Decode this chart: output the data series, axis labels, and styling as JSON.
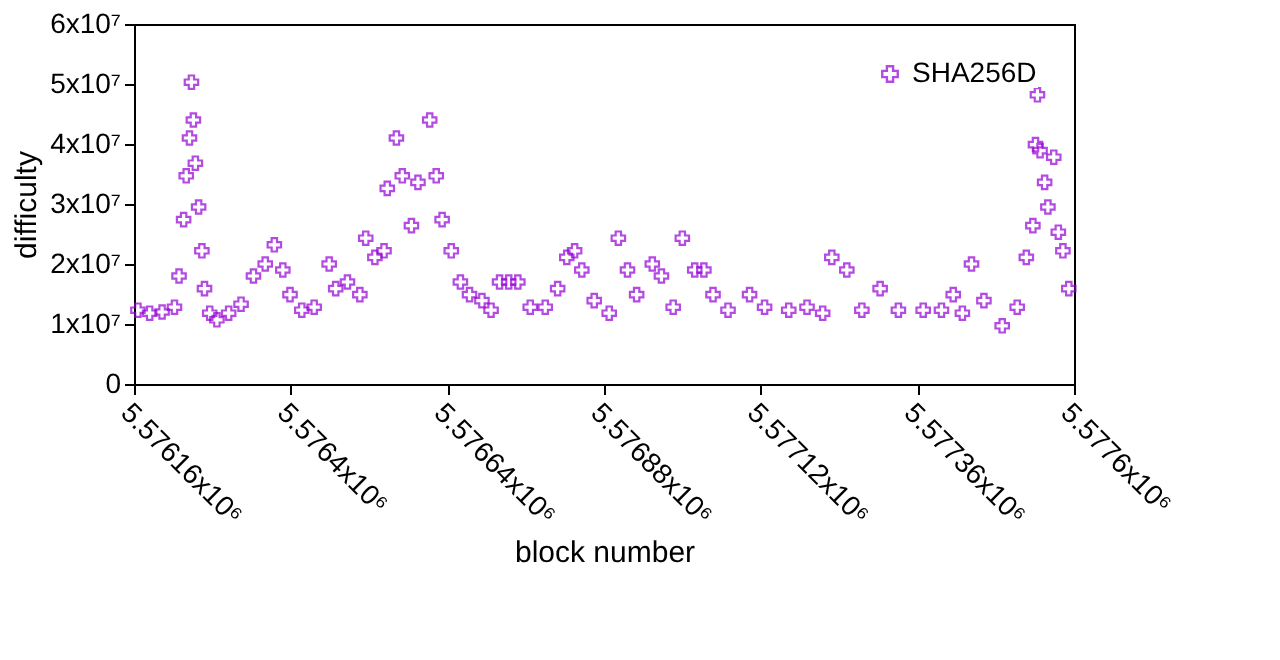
{
  "chart_data": {
    "type": "scatter",
    "xlabel": "block number",
    "ylabel": "difficulty",
    "xlim": [
      5576160,
      5577600
    ],
    "xticks": [
      {
        "value": 5576160,
        "label": "5.57616x10⁶"
      },
      {
        "value": 5576400,
        "label": "5.5764x10⁶"
      },
      {
        "value": 5576640,
        "label": "5.57664x10⁶"
      },
      {
        "value": 5576880,
        "label": "5.57688x10⁶"
      },
      {
        "value": 5577120,
        "label": "5.57712x10⁶"
      },
      {
        "value": 5577360,
        "label": "5.57736x10⁶"
      },
      {
        "value": 5577600,
        "label": "5.5776x10⁶"
      }
    ],
    "ylim": [
      0,
      60000000
    ],
    "yticks": [
      0,
      {
        "value": 10000000,
        "label": "1x10⁷"
      },
      {
        "value": 20000000,
        "label": "2x10⁷"
      },
      {
        "value": 30000000,
        "label": "3x10⁷"
      },
      {
        "value": 40000000,
        "label": "4x10⁷"
      },
      {
        "value": 50000000,
        "label": "5x10⁷"
      },
      {
        "value": 60000000,
        "label": "6x10⁷"
      }
    ],
    "grid": false,
    "legend": "top right",
    "marker": "cross",
    "series": [
      {
        "name": "SHA256D",
        "color": "#9400d3",
        "x": [
          5576166,
          5576184,
          5576203,
          5576222,
          5576229,
          5576236,
          5576240,
          5576245,
          5576248,
          5576251,
          5576254,
          5576259,
          5576264,
          5576268,
          5576276,
          5576287,
          5576305,
          5576324,
          5576343,
          5576361,
          5576375,
          5576388,
          5576399,
          5576417,
          5576436,
          5576459,
          5576469,
          5576487,
          5576506,
          5576515,
          5576529,
          5576543,
          5576548,
          5576562,
          5576571,
          5576585,
          5576595,
          5576613,
          5576623,
          5576632,
          5576646,
          5576660,
          5576674,
          5576693,
          5576707,
          5576720,
          5576734,
          5576748,
          5576767,
          5576790,
          5576809,
          5576823,
          5576835,
          5576846,
          5576865,
          5576888,
          5576902,
          5576916,
          5576930,
          5576954,
          5576968,
          5576986,
          5577000,
          5577019,
          5577033,
          5577047,
          5577070,
          5577103,
          5577126,
          5577163,
          5577191,
          5577215,
          5577229,
          5577252,
          5577275,
          5577303,
          5577331,
          5577369,
          5577397,
          5577415,
          5577429,
          5577443,
          5577462,
          5577490,
          5577513,
          5577527,
          5577537,
          5577541,
          5577544,
          5577548,
          5577555,
          5577560,
          5577569,
          5577576,
          5577583,
          5577592
        ],
        "values": [
          12300000,
          11800000,
          12000000,
          12800000,
          18000000,
          27400000,
          34700000,
          41000000,
          50300000,
          44000000,
          36800000,
          29500000,
          22200000,
          15900000,
          11800000,
          10700000,
          11800000,
          13300000,
          18000000,
          20000000,
          23200000,
          19000000,
          14900000,
          12300000,
          12800000,
          20000000,
          15900000,
          17000000,
          14900000,
          24300000,
          21100000,
          22200000,
          32600000,
          41000000,
          34700000,
          26400000,
          33600000,
          44000000,
          34700000,
          27400000,
          22200000,
          17000000,
          14900000,
          13900000,
          12300000,
          17000000,
          17000000,
          17000000,
          12800000,
          12800000,
          15900000,
          21100000,
          22200000,
          19000000,
          13900000,
          11800000,
          24300000,
          19000000,
          14900000,
          20000000,
          18000000,
          12800000,
          24300000,
          19000000,
          19000000,
          14900000,
          12300000,
          14900000,
          12800000,
          12300000,
          12800000,
          11800000,
          21100000,
          19000000,
          12300000,
          15900000,
          12300000,
          12300000,
          12300000,
          14900000,
          11800000,
          20000000,
          13900000,
          9700000,
          12800000,
          21100000,
          26400000,
          39900000,
          48200000,
          38900000,
          33600000,
          29500000,
          37800000,
          25300000,
          22200000,
          15900000
        ]
      }
    ]
  }
}
